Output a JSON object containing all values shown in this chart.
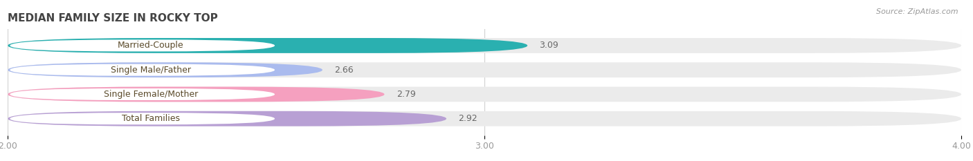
{
  "title": "MEDIAN FAMILY SIZE IN ROCKY TOP",
  "source": "Source: ZipAtlas.com",
  "categories": [
    "Married-Couple",
    "Single Male/Father",
    "Single Female/Mother",
    "Total Families"
  ],
  "values": [
    3.09,
    2.66,
    2.79,
    2.92
  ],
  "bar_colors": [
    "#2ab0b0",
    "#aabbee",
    "#f5a0bf",
    "#b8a0d4"
  ],
  "bar_bg_color": "#ebebeb",
  "xlim_min": 2.0,
  "xlim_max": 4.0,
  "xticks": [
    2.0,
    3.0,
    4.0
  ],
  "xtick_labels": [
    "2.00",
    "3.00",
    "4.00"
  ],
  "background_color": "#ffffff",
  "title_fontsize": 11,
  "label_fontsize": 9,
  "value_fontsize": 9,
  "source_fontsize": 8,
  "tick_fontsize": 9,
  "bar_height": 0.62,
  "bar_gap": 0.18
}
